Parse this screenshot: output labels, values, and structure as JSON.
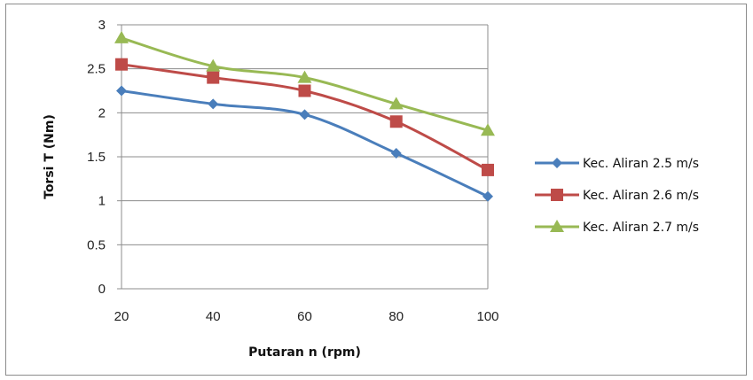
{
  "chart_data": {
    "type": "line",
    "title": "",
    "xlabel": "Putaran n (rpm)",
    "ylabel": "Torsi T (Nm)",
    "x": [
      20,
      40,
      60,
      80,
      100
    ],
    "x_tick_labels": [
      "20",
      "40",
      "60",
      "80",
      "100"
    ],
    "y_tick_labels": [
      "0",
      "0.5",
      "1",
      "1.5",
      "2",
      "2.5",
      "3"
    ],
    "ylim": [
      0,
      3
    ],
    "grid": "horizontal",
    "legend_position": "right",
    "series": [
      {
        "name": "Kec. Aliran 2.5 m/s",
        "values": [
          2.25,
          2.1,
          1.98,
          1.54,
          1.05
        ],
        "color": "#4a7ebb",
        "marker": "diamond"
      },
      {
        "name": "Kec. Aliran 2.6 m/s",
        "values": [
          2.55,
          2.4,
          2.25,
          1.9,
          1.35
        ],
        "color": "#be4b48",
        "marker": "square"
      },
      {
        "name": "Kec. Aliran 2.7 m/s",
        "values": [
          2.85,
          2.53,
          2.4,
          2.1,
          1.8
        ],
        "color": "#98b954",
        "marker": "triangle"
      }
    ]
  }
}
